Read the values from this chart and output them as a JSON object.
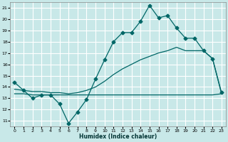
{
  "bg_color": "#c8e8e8",
  "grid_color": "#ffffff",
  "line_color": "#006666",
  "xlabel": "Humidex (Indice chaleur)",
  "xlim": [
    -0.5,
    23.5
  ],
  "ylim": [
    10.5,
    21.5
  ],
  "yticks": [
    11,
    12,
    13,
    14,
    15,
    16,
    17,
    18,
    19,
    20,
    21
  ],
  "xticks": [
    0,
    1,
    2,
    3,
    4,
    5,
    6,
    7,
    8,
    9,
    10,
    11,
    12,
    13,
    14,
    15,
    16,
    17,
    18,
    19,
    20,
    21,
    22,
    23
  ],
  "line1_x": [
    0,
    1,
    2,
    3,
    4,
    5,
    6,
    7,
    8,
    9,
    10,
    11,
    12,
    13,
    14,
    15,
    16,
    17,
    18,
    19,
    20,
    21,
    22,
    23
  ],
  "line1_y": [
    14.4,
    13.7,
    13.0,
    13.3,
    13.3,
    12.5,
    10.8,
    11.8,
    12.9,
    14.7,
    16.4,
    18.0,
    18.8,
    18.8,
    19.8,
    21.2,
    20.1,
    20.3,
    19.2,
    18.3,
    18.3,
    17.2,
    16.5,
    13.5
  ],
  "line2_x": [
    0,
    1,
    2,
    3,
    4,
    5,
    6,
    7,
    8,
    9,
    10,
    11,
    12,
    13,
    14,
    15,
    16,
    17,
    18,
    19,
    20,
    21,
    22,
    23
  ],
  "line2_y": [
    13.8,
    13.7,
    13.6,
    13.6,
    13.5,
    13.5,
    13.4,
    13.5,
    13.7,
    14.0,
    14.5,
    15.1,
    15.6,
    16.0,
    16.4,
    16.7,
    17.0,
    17.2,
    17.5,
    17.2,
    17.2,
    17.2,
    16.5,
    13.4
  ],
  "line3_x": [
    0,
    1,
    2,
    3,
    4,
    5,
    6,
    7,
    8,
    9,
    10,
    11,
    12,
    13,
    14,
    15,
    16,
    17,
    18,
    19,
    20,
    21,
    22,
    23
  ],
  "line3_y": [
    13.4,
    13.4,
    13.3,
    13.3,
    13.3,
    13.3,
    13.3,
    13.3,
    13.3,
    13.3,
    13.3,
    13.3,
    13.3,
    13.3,
    13.3,
    13.3,
    13.3,
    13.3,
    13.3,
    13.3,
    13.3,
    13.3,
    13.3,
    13.4
  ]
}
